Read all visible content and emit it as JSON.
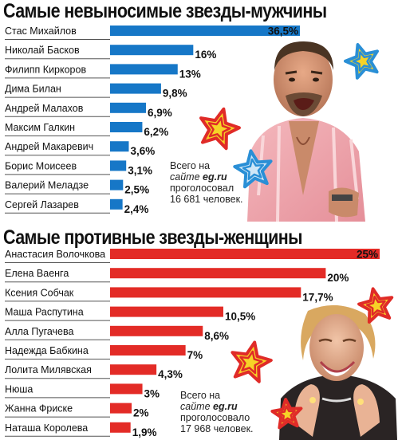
{
  "chart_data": [
    {
      "type": "bar",
      "orientation": "horizontal",
      "title": "Самые невыносимые звезды-мужчины",
      "categories": [
        "Стас Михайлов",
        "Николай Басков",
        "Филипп Киркоров",
        "Дима Билан",
        "Андрей Малахов",
        "Максим Галкин",
        "Андрей Макаревич",
        "Борис Моисеев",
        "Валерий Меладзе",
        "Сергей Лазарев"
      ],
      "values": [
        36.5,
        16,
        13,
        9.8,
        6.9,
        6.2,
        3.6,
        3.1,
        2.5,
        2.4
      ],
      "value_labels": [
        "36,5%",
        "16%",
        "13%",
        "9,8%",
        "6,9%",
        "6,2%",
        "3,6%",
        "3,1%",
        "2,5%",
        "2,4%"
      ],
      "color": "#1677c7",
      "xlim": [
        0,
        36.5
      ],
      "grid": false
    },
    {
      "type": "bar",
      "orientation": "horizontal",
      "title": "Самые противные звезды-женщины",
      "categories": [
        "Анастасия Волочкова",
        "Елена Ваенга",
        "Ксения Собчак",
        "Маша Распутина",
        "Алла Пугачева",
        "Надежда Бабкина",
        "Лолита Милявская",
        "Нюша",
        "Жанна Фриске",
        "Наташа Королева"
      ],
      "values": [
        25,
        20,
        17.7,
        10.5,
        8.6,
        7,
        4.3,
        3,
        2,
        1.9
      ],
      "value_labels": [
        "25%",
        "20%",
        "17,7%",
        "10,5%",
        "8,6%",
        "7%",
        "4,3%",
        "3%",
        "2%",
        "1,9%"
      ],
      "color": "#e32b26",
      "xlim": [
        0,
        25
      ],
      "grid": false
    }
  ],
  "notes": {
    "men": {
      "line1": "Всего на",
      "site_word": "сайте",
      "domain": "eg.ru",
      "line3": "проголосовал",
      "line4": "16 681 человек."
    },
    "women": {
      "line1": "Всего на",
      "site_word": "сайте",
      "domain": "eg.ru",
      "line3": "проголосовало",
      "line4": "17 968 человек."
    }
  },
  "colors": {
    "men_bar": "#1677c7",
    "women_bar": "#e32b26",
    "star_yellow": "#f6d327",
    "star_red": "#e02b28",
    "star_blue": "#2a8fd6"
  }
}
